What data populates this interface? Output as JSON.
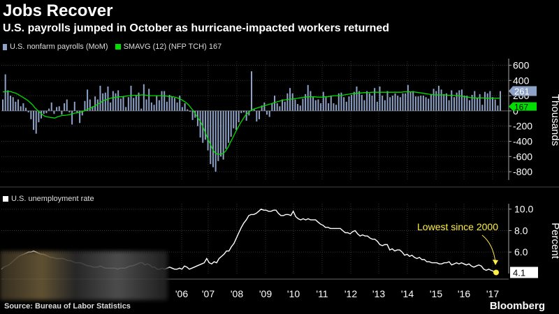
{
  "title": "Jobs Recover",
  "subtitle": "U.S. payrolls jumped in October as hurricane-impacted workers returned",
  "legend": {
    "payrolls": "U.S. nonfarm payrolls (MoM)",
    "smavg": "SMAVG (12) (NFP TCH) 167",
    "unemployment": "U.S. unemployment rate"
  },
  "source": "Source: Bureau of Labor Statistics",
  "brand": "Bloomberg",
  "colors": {
    "bar": "#8ea2c8",
    "smavg": "#00dd00",
    "line": "#ffffff",
    "dot": "#ffee44",
    "annotation": "#ffee44"
  },
  "chart_data": [
    {
      "type": "bar",
      "title": "U.S. nonfarm payrolls (MoM)",
      "ylabel": "Thousands",
      "ylim": [
        -900,
        650
      ],
      "yticks": [
        "600",
        "400",
        "200",
        "0",
        "-200",
        "-400",
        "-600",
        "-800"
      ],
      "series": [
        {
          "name": "U.S. nonfarm payrolls (MoM)",
          "latest_label": "261",
          "values": [
            150,
            480,
            270,
            200,
            180,
            120,
            150,
            60,
            100,
            40,
            -20,
            -110,
            -250,
            -300,
            -150,
            -100,
            -40,
            -30,
            30,
            110,
            -40,
            50,
            60,
            -50,
            100,
            150,
            -20,
            -180,
            120,
            -30,
            -160,
            -60,
            130,
            280,
            150,
            60,
            190,
            150,
            330,
            230,
            240,
            320,
            110,
            260,
            230,
            270,
            160,
            190,
            50,
            180,
            330,
            170,
            200,
            240,
            30,
            350,
            150,
            290,
            110,
            80,
            200,
            140,
            260,
            260,
            120,
            210,
            190,
            170,
            110,
            200,
            50,
            100,
            20,
            -10,
            -120,
            -90,
            -200,
            -350,
            -420,
            -380,
            -520,
            -700,
            -740,
            -800,
            -660,
            -600,
            -640,
            -500,
            -420,
            -340,
            -230,
            -250,
            -150,
            -30,
            -20,
            -130,
            -60,
            520,
            20,
            -140,
            -110,
            70,
            110,
            -50,
            -80,
            100,
            200,
            100,
            60,
            150,
            120,
            230,
            300,
            230,
            150,
            90,
            70,
            160,
            220,
            340,
            260,
            180,
            140,
            150,
            100,
            250,
            180,
            100,
            200,
            100,
            80,
            230,
            240,
            180,
            120,
            190,
            210,
            250,
            320,
            260,
            210,
            140,
            260,
            230,
            200,
            300,
            120,
            320,
            200,
            140,
            260,
            180,
            200,
            230,
            200,
            180,
            230,
            230,
            340,
            250,
            260,
            190,
            190,
            200,
            200,
            180,
            160,
            220,
            290,
            260,
            330,
            280,
            220,
            230,
            140,
            270,
            180,
            240,
            270,
            280,
            200,
            200,
            140,
            210,
            260,
            170,
            220,
            80,
            250,
            230,
            260,
            180,
            150,
            70,
            260
          ]
        },
        {
          "name": "SMAVG (12) (NFP TCH)",
          "latest_label": "167",
          "values": [
            250,
            250,
            255,
            255,
            245,
            235,
            220,
            200,
            180,
            160,
            140,
            110,
            80,
            40,
            10,
            -20,
            -50,
            -70,
            -80,
            -85,
            -90,
            -95,
            -80,
            -70,
            -60,
            -60,
            -55,
            -50,
            -40,
            -30,
            -25,
            -20,
            -10,
            0,
            15,
            30,
            45,
            60,
            80,
            100,
            120,
            140,
            150,
            160,
            170,
            175,
            180,
            185,
            185,
            190,
            195,
            200,
            200,
            205,
            205,
            205,
            210,
            210,
            205,
            200,
            200,
            200,
            200,
            200,
            200,
            195,
            195,
            190,
            190,
            185,
            175,
            165,
            150,
            130,
            110,
            80,
            40,
            0,
            -50,
            -100,
            -150,
            -220,
            -300,
            -380,
            -450,
            -520,
            -560,
            -570,
            -570,
            -560,
            -530,
            -480,
            -410,
            -350,
            -280,
            -220,
            -160,
            -110,
            -60,
            -30,
            0,
            20,
            30,
            40,
            50,
            60,
            70,
            80,
            90,
            100,
            110,
            120,
            130,
            140,
            145,
            150,
            155,
            155,
            160,
            165,
            170,
            175,
            180,
            185,
            185,
            185,
            185,
            180,
            180,
            180,
            185,
            185,
            190,
            195,
            200,
            200,
            200,
            205,
            210,
            215,
            220,
            225,
            230,
            230,
            235,
            235,
            240,
            240,
            240,
            245,
            245,
            245,
            245,
            245,
            245,
            245,
            245,
            245,
            245,
            245,
            245,
            245,
            250,
            250,
            250,
            250,
            250,
            245,
            240,
            235,
            230,
            225,
            220,
            215,
            210,
            210,
            210,
            210,
            210,
            210,
            205,
            205,
            205,
            200,
            200,
            195,
            190,
            185,
            180,
            175,
            170,
            170,
            170,
            170,
            170,
            168,
            167,
            167,
            167,
            167,
            167,
            167
          ]
        }
      ]
    },
    {
      "type": "line",
      "title": "U.S. unemployment rate",
      "ylabel": "Percent",
      "ylim": [
        4,
        10.5
      ],
      "yticks": [
        "10.0",
        "8.0",
        "6.0"
      ],
      "latest_label": "4.1",
      "annotation": "Lowest since 2000",
      "xlabels": [
        "'06",
        "'07",
        "'08",
        "'09",
        "'10",
        "'11",
        "'12",
        "'13",
        "'14",
        "'15",
        "'16",
        "'17"
      ],
      "values": [
        4.4,
        4.6,
        4.7,
        4.8,
        5.0,
        5.2,
        5.4,
        5.6,
        5.7,
        5.8,
        5.9,
        6.0,
        6.0,
        6.1,
        6.0,
        5.9,
        5.8,
        5.8,
        5.7,
        5.6,
        5.5,
        5.5,
        5.4,
        5.4,
        5.4,
        5.4,
        5.3,
        5.2,
        5.2,
        5.1,
        5.0,
        5.0,
        5.0,
        4.9,
        4.8,
        4.7,
        4.7,
        4.6,
        4.6,
        4.6,
        4.7,
        4.6,
        4.5,
        4.5,
        4.5,
        4.5,
        4.5,
        4.4,
        4.5,
        4.5,
        4.5,
        4.6,
        4.7,
        4.7,
        4.8,
        4.9,
        5.0,
        5.0,
        4.8,
        4.9,
        4.8,
        4.6,
        4.6,
        4.4,
        4.4,
        4.5,
        4.4,
        4.5,
        4.6,
        4.5,
        4.4,
        4.4,
        4.5,
        4.4,
        4.7,
        4.6,
        4.4,
        4.5,
        4.6,
        4.7,
        4.8,
        4.9,
        5.0,
        5.4,
        5.0,
        4.9,
        5.1,
        5.0,
        5.4,
        5.6,
        5.8,
        6.1,
        6.1,
        6.5,
        6.8,
        7.3,
        7.8,
        8.3,
        8.7,
        9.0,
        9.4,
        9.5,
        9.5,
        9.6,
        9.8,
        10.0,
        9.9,
        9.9,
        9.8,
        9.8,
        9.9,
        9.9,
        9.6,
        9.4,
        9.4,
        9.5,
        9.5,
        9.4,
        9.8,
        9.3,
        9.1,
        9.0,
        9.1,
        9.0,
        9.1,
        9.0,
        9.0,
        9.0,
        8.8,
        8.6,
        8.5,
        8.3,
        8.3,
        8.2,
        8.2,
        8.2,
        8.2,
        8.2,
        8.0,
        7.8,
        7.8,
        7.7,
        7.9,
        8.0,
        7.7,
        7.5,
        7.6,
        7.5,
        7.5,
        7.3,
        7.2,
        7.2,
        7.0,
        6.7,
        6.6,
        6.7,
        6.7,
        6.2,
        6.3,
        6.1,
        6.2,
        6.2,
        6.0,
        5.7,
        5.8,
        5.6,
        5.7,
        5.5,
        5.4,
        5.5,
        5.3,
        5.3,
        5.1,
        5.1,
        5.0,
        5.0,
        5.0,
        4.9,
        4.9,
        5.0,
        5.0,
        5.1,
        4.8,
        4.9,
        5.0,
        4.9,
        5.0,
        4.9,
        4.8,
        4.9,
        4.7,
        4.6,
        4.7,
        4.8,
        4.7,
        4.4,
        4.3,
        4.4,
        4.3,
        4.2,
        4.1
      ]
    }
  ]
}
